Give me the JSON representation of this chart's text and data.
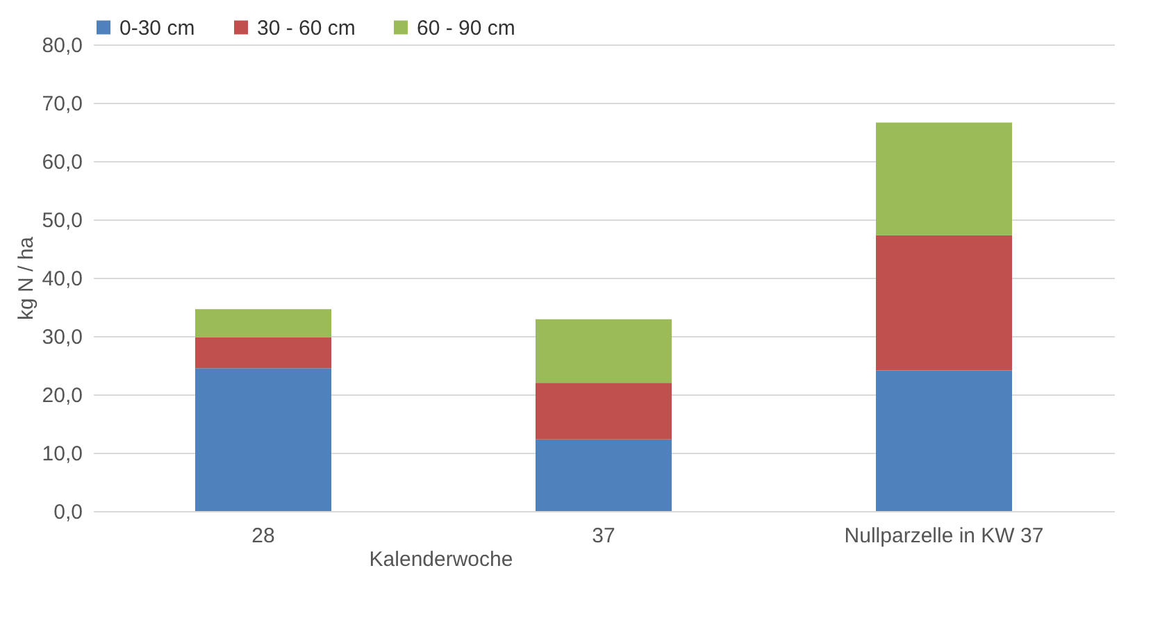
{
  "chart_data": {
    "type": "bar",
    "stacked": true,
    "xlabel": "Kalenderwoche",
    "ylabel": "kg N / ha",
    "categories": [
      "28",
      "37",
      "Nullparzelle in KW 37"
    ],
    "series": [
      {
        "name": "0-30 cm",
        "color": "#4f81bd",
        "values": [
          24.5,
          12.3,
          24.1
        ]
      },
      {
        "name": "30 - 60 cm",
        "color": "#c0504d",
        "values": [
          5.3,
          9.7,
          23.2
        ]
      },
      {
        "name": "60 - 90 cm",
        "color": "#9bbb59",
        "values": [
          4.8,
          10.9,
          19.3
        ]
      }
    ],
    "ylim": [
      0,
      80
    ],
    "yticks": [
      {
        "value": 0,
        "label": "0,0"
      },
      {
        "value": 10,
        "label": "10,0"
      },
      {
        "value": 20,
        "label": "20,0"
      },
      {
        "value": 30,
        "label": "30,0"
      },
      {
        "value": 40,
        "label": "40,0"
      },
      {
        "value": 50,
        "label": "50,0"
      },
      {
        "value": 60,
        "label": "60,0"
      },
      {
        "value": 70,
        "label": "70,0"
      },
      {
        "value": 80,
        "label": "80,0"
      }
    ],
    "grid": "y",
    "legend": "top"
  }
}
